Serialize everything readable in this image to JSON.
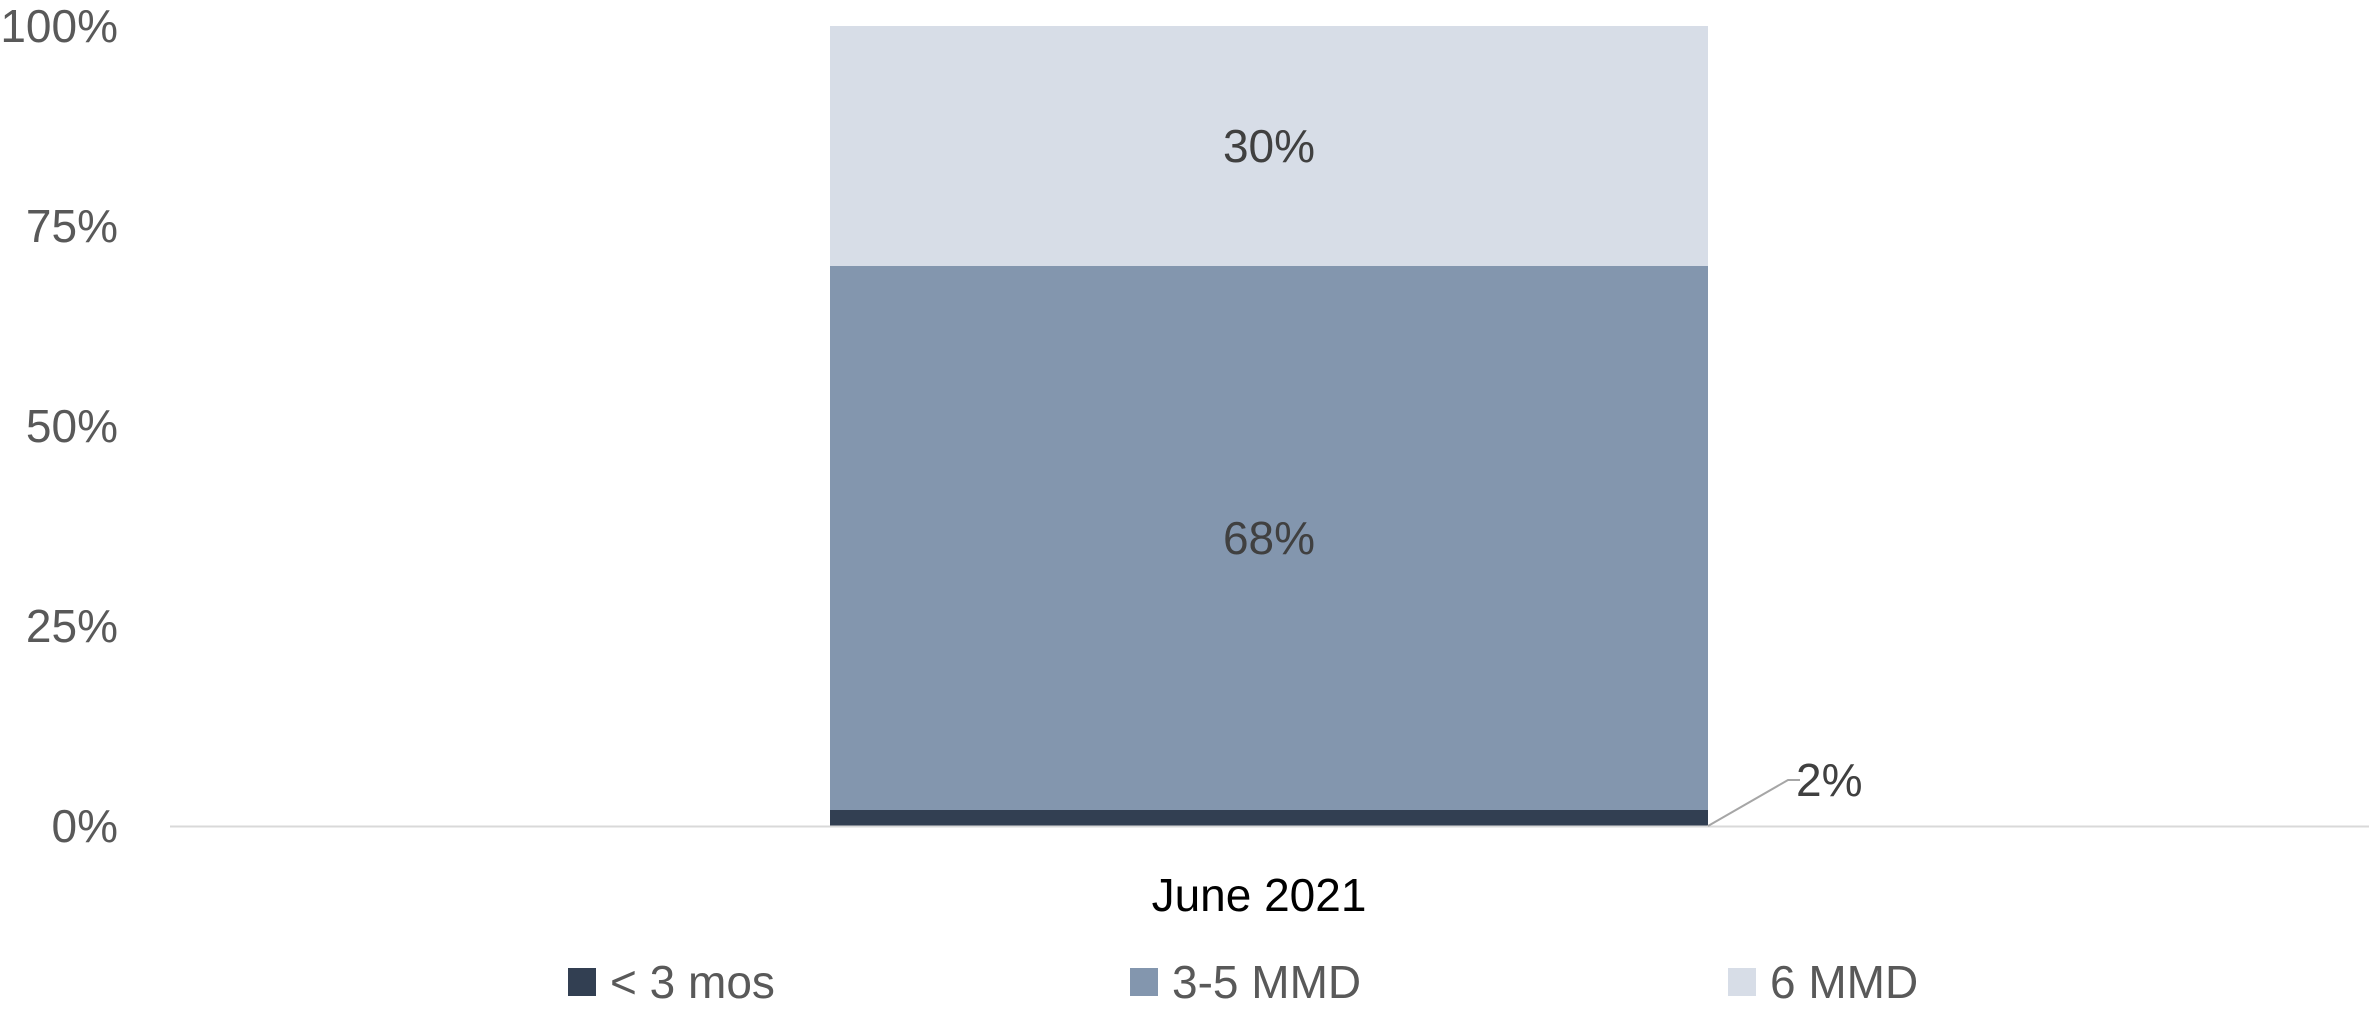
{
  "chart_data": {
    "type": "bar",
    "stacked": true,
    "categories": [
      "June 2021"
    ],
    "series": [
      {
        "name": "< 3 mos",
        "values": [
          2
        ],
        "color": "#323f52",
        "label": "2%"
      },
      {
        "name": "3-5 MMD",
        "values": [
          68
        ],
        "color": "#8396ae",
        "label": "68%"
      },
      {
        "name": "6 MMD",
        "values": [
          30
        ],
        "color": "#d7dde7",
        "label": "30%"
      }
    ],
    "ylim": [
      0,
      100
    ],
    "yticks": [
      0,
      25,
      50,
      75,
      100
    ],
    "ytick_labels": [
      "0%",
      "25%",
      "50%",
      "75%",
      "100%"
    ],
    "grid": false,
    "legend_position": "bottom",
    "colors": {
      "axis_line": "#d9d9d9",
      "tick_text": "#595959",
      "category_text": "#000000",
      "data_label_text": "#404040",
      "leader_line": "#a6a6a6"
    }
  }
}
